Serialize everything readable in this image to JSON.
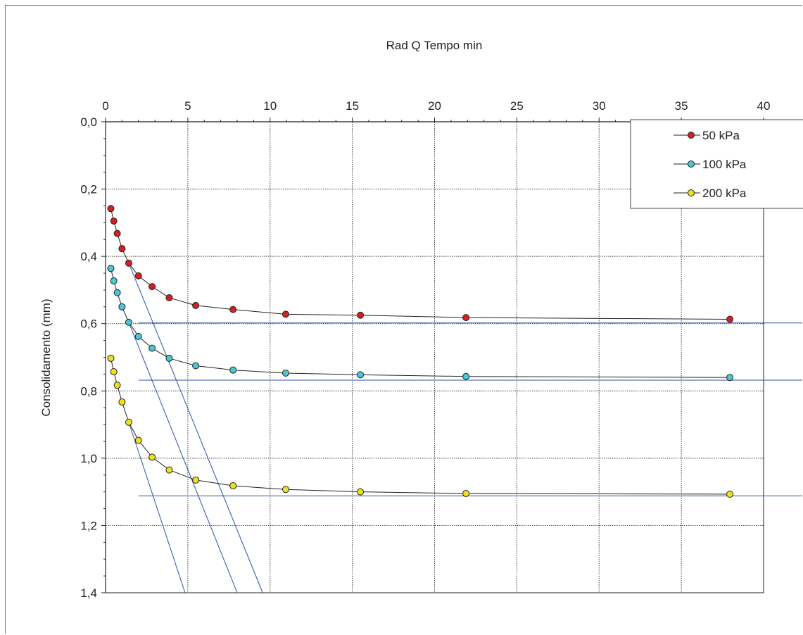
{
  "chart_data": {
    "type": "line",
    "title": "Rad Q Tempo min",
    "xlabel": "",
    "ylabel": "Consolidamento (mm)",
    "xlim": [
      0,
      40
    ],
    "ylim": [
      0,
      1.4
    ],
    "y_inverted": true,
    "x_axis_position": "top",
    "x_ticks": [
      "0",
      "5",
      "10",
      "15",
      "20",
      "25",
      "30",
      "35",
      "40"
    ],
    "y_ticks": [
      "0,0",
      "0,2",
      "0,4",
      "0,6",
      "0,8",
      "1,0",
      "1,2",
      "1,4"
    ],
    "grid": true,
    "legend_position": "top-right",
    "series": [
      {
        "name": "50  kPa",
        "color": "#d42020",
        "points": [
          [
            0.32,
            0.258
          ],
          [
            0.5,
            0.295
          ],
          [
            0.71,
            0.332
          ],
          [
            1.0,
            0.377
          ],
          [
            1.41,
            0.42
          ],
          [
            2.0,
            0.458
          ],
          [
            2.83,
            0.49
          ],
          [
            3.87,
            0.523
          ],
          [
            5.48,
            0.546
          ],
          [
            7.75,
            0.558
          ],
          [
            10.95,
            0.572
          ],
          [
            15.49,
            0.575
          ],
          [
            21.91,
            0.582
          ],
          [
            37.95,
            0.587
          ]
        ]
      },
      {
        "name": "100  kPa",
        "color": "#4cc6d0",
        "points": [
          [
            0.32,
            0.436
          ],
          [
            0.5,
            0.473
          ],
          [
            0.71,
            0.508
          ],
          [
            1.0,
            0.55
          ],
          [
            1.41,
            0.596
          ],
          [
            2.0,
            0.638
          ],
          [
            2.83,
            0.673
          ],
          [
            3.87,
            0.703
          ],
          [
            5.48,
            0.725
          ],
          [
            7.75,
            0.738
          ],
          [
            10.95,
            0.747
          ],
          [
            15.49,
            0.752
          ],
          [
            21.91,
            0.757
          ],
          [
            37.95,
            0.76
          ]
        ]
      },
      {
        "name": "200  kPa",
        "color": "#f0e020",
        "points": [
          [
            0.32,
            0.703
          ],
          [
            0.5,
            0.743
          ],
          [
            0.71,
            0.783
          ],
          [
            1.0,
            0.833
          ],
          [
            1.41,
            0.893
          ],
          [
            2.0,
            0.947
          ],
          [
            2.83,
            0.997
          ],
          [
            3.87,
            1.035
          ],
          [
            5.48,
            1.065
          ],
          [
            7.75,
            1.082
          ],
          [
            10.95,
            1.093
          ],
          [
            15.49,
            1.1
          ],
          [
            21.91,
            1.105
          ],
          [
            37.95,
            1.107
          ]
        ]
      }
    ],
    "construction_lines": {
      "color": "#2b4fa8",
      "horizontal": [
        {
          "x": [
            2.0,
            40.0
          ],
          "y": 0.598
        },
        {
          "x": [
            2.0,
            40.0
          ],
          "y": 0.768
        },
        {
          "x": [
            2.0,
            40.0
          ],
          "y": 1.112
        }
      ],
      "sloped": [
        {
          "x": [
            1.41,
            9.55
          ],
          "y": [
            0.42,
            1.4
          ]
        },
        {
          "x": [
            1.41,
            8.0
          ],
          "y": [
            0.596,
            1.4
          ]
        },
        {
          "x": [
            1.41,
            4.83
          ],
          "y": [
            0.893,
            1.4
          ]
        }
      ]
    }
  }
}
